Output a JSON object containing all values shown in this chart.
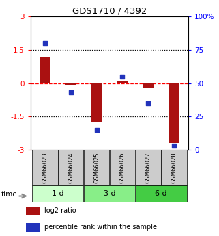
{
  "title": "GDS1710 / 4392",
  "samples": [
    "GSM66023",
    "GSM66024",
    "GSM66025",
    "GSM66026",
    "GSM66027",
    "GSM66028"
  ],
  "log2_ratio": [
    1.2,
    -0.08,
    -1.75,
    0.1,
    -0.2,
    -2.7
  ],
  "percentile_rank": [
    80,
    43,
    15,
    55,
    35,
    3
  ],
  "bar_color": "#aa1111",
  "dot_color": "#2233bb",
  "ylim_left": [
    -3,
    3
  ],
  "ylim_right": [
    0,
    100
  ],
  "yticks_left": [
    -3,
    -1.5,
    0,
    1.5,
    3
  ],
  "yticks_right": [
    0,
    25,
    50,
    75,
    100
  ],
  "legend_log2": "log2 ratio",
  "legend_pct": "percentile rank within the sample",
  "sample_box_color": "#cccccc",
  "time_groups": [
    {
      "label": "1 d",
      "start": 0,
      "end": 1,
      "color": "#ccffcc"
    },
    {
      "label": "3 d",
      "start": 2,
      "end": 3,
      "color": "#88ee88"
    },
    {
      "label": "6 d",
      "start": 4,
      "end": 5,
      "color": "#44cc44"
    }
  ]
}
